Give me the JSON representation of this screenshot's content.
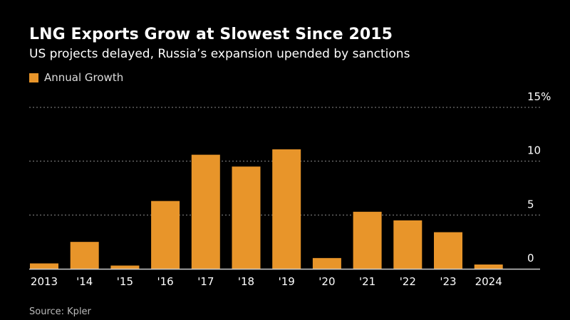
{
  "title": "LNG Exports Grow at Slowest Since 2015",
  "subtitle": "US projects delayed, Russia’s expansion upended by sanctions",
  "source": "Source: Kpler",
  "colors": {
    "bar": "#E8952A",
    "gridline": "#8a8a8a",
    "axis": "#cccccc",
    "background": "#000000",
    "text": "#ffffff"
  },
  "chart_data": {
    "type": "bar",
    "categories": [
      "2013",
      "'14",
      "'15",
      "'16",
      "'17",
      "'18",
      "'19",
      "'20",
      "'21",
      "'22",
      "'23",
      "2024"
    ],
    "series": [
      {
        "name": "Annual Growth",
        "values": [
          0.5,
          2.5,
          0.3,
          6.3,
          10.6,
          9.5,
          11.1,
          1.0,
          5.3,
          4.5,
          3.4,
          0.4
        ]
      }
    ],
    "ylim": [
      0,
      15
    ],
    "yticks": [
      0,
      5,
      10,
      15
    ],
    "ytick_labels": [
      "0",
      "5",
      "10",
      "15%"
    ],
    "xlabel": "",
    "ylabel": "",
    "grid": true,
    "y_axis_side": "right",
    "legend_position": "top-left"
  }
}
